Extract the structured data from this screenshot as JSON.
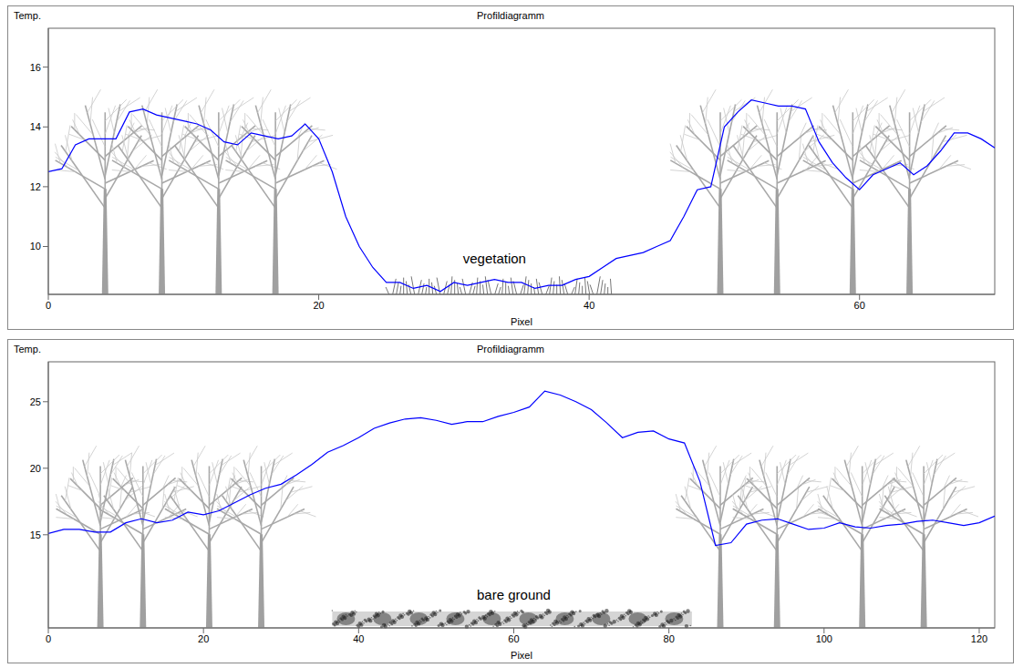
{
  "chart_data": [
    {
      "type": "line",
      "title": "Profildiagramm",
      "y_label": "Temp.",
      "x_label": "Pixel",
      "color": "#0000ff",
      "x": [
        0,
        1,
        2,
        3,
        4,
        5,
        6,
        7,
        8,
        9,
        10,
        11,
        12,
        13,
        14,
        15,
        16,
        17,
        18,
        19,
        20,
        21,
        22,
        23,
        24,
        25,
        26,
        27,
        28,
        29,
        30,
        31,
        32,
        33,
        34,
        35,
        36,
        37,
        38,
        39,
        40,
        41,
        42,
        43,
        44,
        45,
        46,
        47,
        48,
        49,
        50,
        51,
        52,
        53,
        54,
        55,
        56,
        57,
        58,
        59,
        60,
        61,
        62,
        63,
        64,
        65,
        66,
        67,
        68,
        69,
        70
      ],
      "values": [
        12.5,
        12.6,
        13.4,
        13.6,
        13.6,
        13.6,
        14.5,
        14.6,
        14.4,
        14.3,
        14.2,
        14.1,
        13.9,
        13.5,
        13.4,
        13.8,
        13.7,
        13.6,
        13.7,
        14.1,
        13.6,
        12.5,
        11.0,
        10.0,
        9.3,
        8.8,
        8.8,
        8.6,
        8.7,
        8.5,
        8.8,
        8.7,
        8.8,
        8.9,
        8.8,
        8.8,
        8.6,
        8.7,
        8.7,
        8.9,
        9.0,
        9.3,
        9.6,
        9.7,
        9.8,
        10.0,
        10.2,
        11.0,
        11.9,
        12.0,
        14.0,
        14.5,
        14.9,
        14.8,
        14.7,
        14.7,
        14.6,
        13.5,
        12.8,
        12.3,
        11.9,
        12.4,
        12.6,
        12.8,
        12.4,
        12.7,
        13.2,
        13.8,
        13.8,
        13.6,
        13.3
      ],
      "xlim": [
        0,
        70
      ],
      "xticks": [
        0,
        20,
        40,
        60
      ],
      "ylim": [
        8.4,
        17.3
      ],
      "yticks": [
        10,
        12,
        14,
        16
      ],
      "annotations": [
        {
          "text": "vegetation",
          "x": 33,
          "y": 9.6
        }
      ]
    },
    {
      "type": "line",
      "title": "Profildiagramm",
      "y_label": "Temp.",
      "x_label": "Pixel",
      "color": "#0000ff",
      "x": [
        0,
        2,
        4,
        6,
        8,
        10,
        12,
        14,
        16,
        18,
        20,
        22,
        24,
        26,
        28,
        30,
        32,
        34,
        36,
        38,
        40,
        42,
        44,
        46,
        48,
        50,
        52,
        54,
        56,
        58,
        60,
        62,
        64,
        66,
        68,
        70,
        72,
        74,
        76,
        78,
        80,
        82,
        84,
        86,
        88,
        90,
        92,
        94,
        96,
        98,
        100,
        102,
        104,
        106,
        108,
        110,
        112,
        114,
        116,
        118,
        120,
        122
      ],
      "values": [
        15.1,
        15.4,
        15.4,
        15.2,
        15.2,
        15.9,
        16.2,
        15.9,
        16.1,
        16.7,
        16.5,
        16.8,
        17.4,
        18.0,
        18.5,
        18.8,
        19.5,
        20.3,
        21.2,
        21.7,
        22.3,
        23.0,
        23.4,
        23.7,
        23.8,
        23.6,
        23.3,
        23.5,
        23.5,
        23.9,
        24.2,
        24.6,
        25.8,
        25.5,
        25.0,
        24.4,
        23.4,
        22.3,
        22.7,
        22.8,
        22.2,
        21.9,
        19.0,
        14.2,
        14.4,
        15.8,
        16.1,
        16.2,
        15.8,
        15.4,
        15.5,
        15.9,
        15.6,
        15.5,
        15.7,
        15.8,
        16.0,
        16.1,
        15.9,
        15.7,
        15.9,
        16.4
      ],
      "xlim": [
        0,
        122
      ],
      "xticks": [
        0,
        20,
        40,
        60,
        80,
        100,
        120
      ],
      "ylim": [
        8,
        28
      ],
      "yticks": [
        15,
        20,
        25
      ],
      "annotations": [
        {
          "text": "bare ground",
          "x": 60,
          "y": 10.5
        }
      ]
    }
  ]
}
